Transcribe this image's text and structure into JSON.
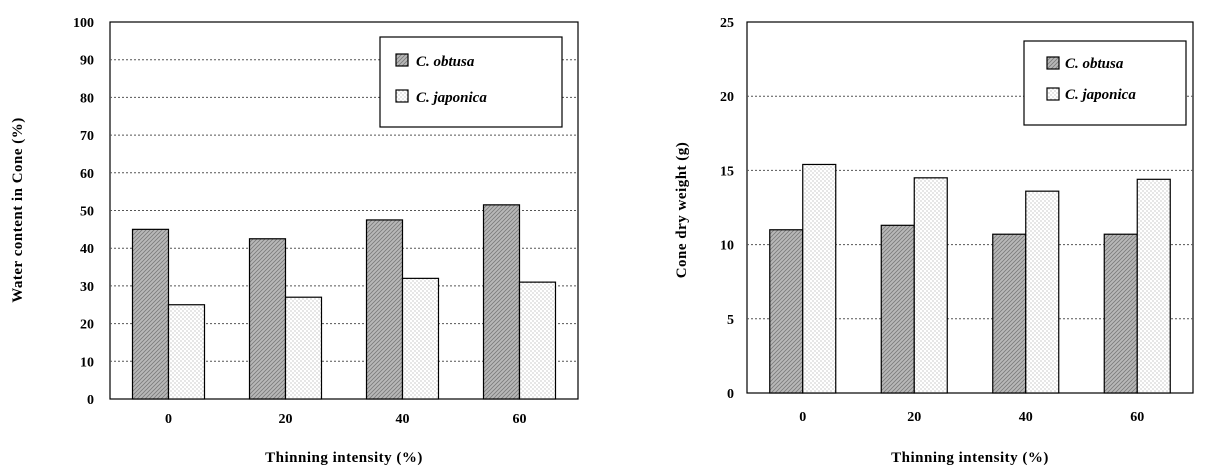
{
  "chart_data": [
    {
      "type": "bar",
      "categories": [
        "0",
        "20",
        "40",
        "60"
      ],
      "series": [
        {
          "name": "C. obtusa",
          "values": [
            45,
            42.5,
            47.5,
            51.5
          ]
        },
        {
          "name": "C. japonica",
          "values": [
            25,
            27,
            32,
            31
          ]
        }
      ],
      "xlabel": "Thinning intensity (%)",
      "ylabel": "Water content in Cone (%)",
      "ylim": [
        0,
        100
      ],
      "yticks": [
        "0",
        "10",
        "20",
        "30",
        "40",
        "50",
        "60",
        "70",
        "80",
        "90",
        "100"
      ],
      "grid": true,
      "legend_position": "top-right"
    },
    {
      "type": "bar",
      "categories": [
        "0",
        "20",
        "40",
        "60"
      ],
      "series": [
        {
          "name": "C. obtusa",
          "values": [
            11,
            11.3,
            10.7,
            10.7
          ]
        },
        {
          "name": "C. japonica",
          "values": [
            15.4,
            14.5,
            13.6,
            14.4
          ]
        }
      ],
      "xlabel": "Thinning intensity (%)",
      "ylabel": "Cone dry weight (g)",
      "ylim": [
        0,
        25
      ],
      "yticks": [
        "0",
        "5",
        "10",
        "15",
        "20",
        "25"
      ],
      "grid": true,
      "legend_position": "top-right"
    }
  ],
  "colors": {
    "series1_fill": "#b4b4b4",
    "series2_fill": "#ffffff"
  }
}
